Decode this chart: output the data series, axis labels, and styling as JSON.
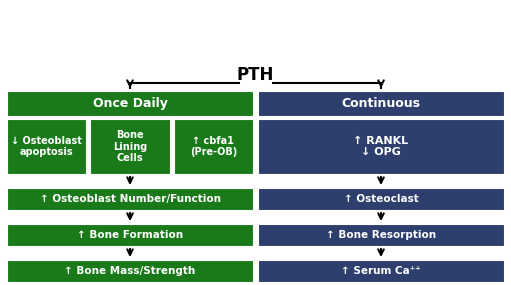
{
  "title": "PTH",
  "background_color": "#ffffff",
  "green": "#1a7a1a",
  "blue": "#2e3f6e",
  "text_color": "#ffffff",
  "left_header": "Once Daily",
  "right_header": "Continuous",
  "left_col": [
    "↑ Osteoblast Number/Function",
    "↑ Bone Formation",
    "↑ Bone Mass/Strength"
  ],
  "right_col": [
    "↑ Osteoclast",
    "↑ Bone Resorption",
    "↑ Serum Ca⁺⁺"
  ],
  "left_sub": [
    "↓ Osteoblast\napoptosis",
    "Bone\nLining\nCells",
    "↑ cbfa1\n(Pre-OB)"
  ],
  "right_sub": "↑ RANKL\n↓ OPG",
  "fig_w": 5.11,
  "fig_h": 2.85,
  "dpi": 100
}
